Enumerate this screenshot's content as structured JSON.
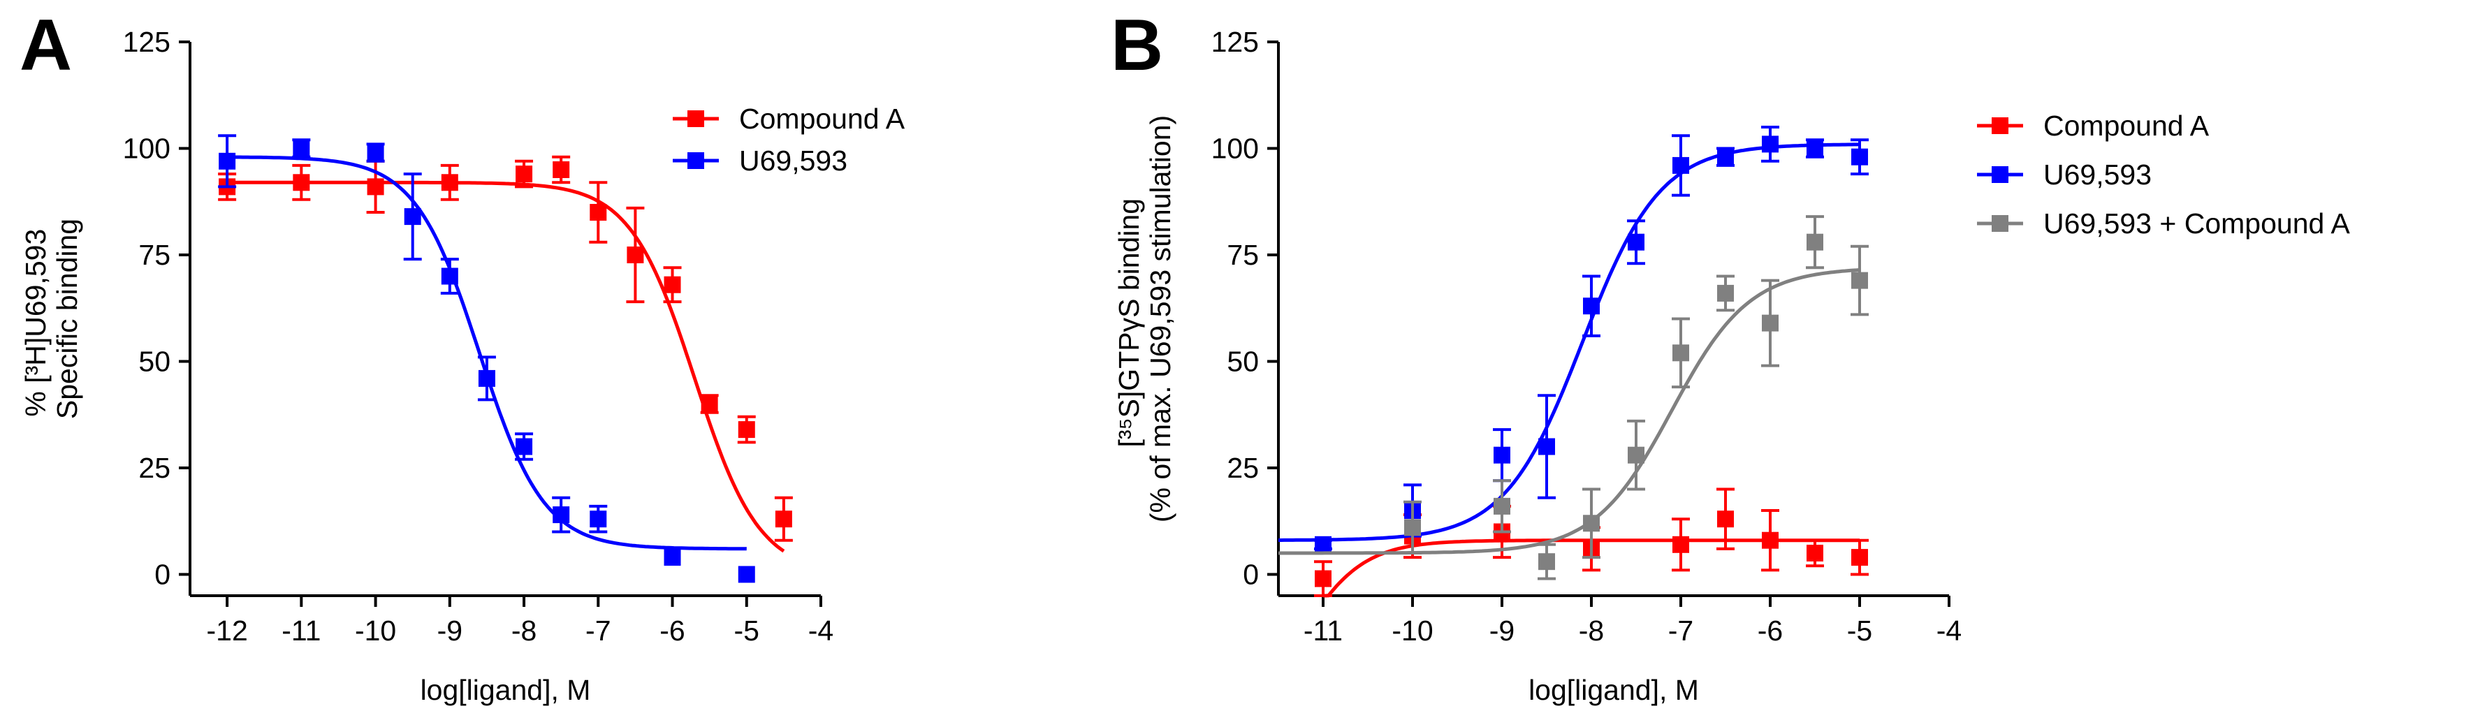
{
  "chart_data": [
    {
      "panel": "A",
      "type": "scatter",
      "xlabel": "log[ligand], M",
      "ylabel_lines": [
        "% [³H]U69,593",
        "Specific binding"
      ],
      "xlim": [
        -12.5,
        -4
      ],
      "ylim": [
        -5,
        125
      ],
      "xticks": [
        -12,
        -11,
        -10,
        -9,
        -8,
        -7,
        -6,
        -5,
        -4
      ],
      "yticks": [
        0,
        25,
        50,
        75,
        100,
        125
      ],
      "legend_position": "top-right",
      "series": [
        {
          "name": "Compound A",
          "color": "#ff0000",
          "points": [
            {
              "x": -12,
              "y": 91,
              "err": 3
            },
            {
              "x": -11,
              "y": 92,
              "err": 4
            },
            {
              "x": -10,
              "y": 91,
              "err": 6
            },
            {
              "x": -9,
              "y": 92,
              "err": 4
            },
            {
              "x": -8,
              "y": 94,
              "err": 3
            },
            {
              "x": -7.5,
              "y": 95,
              "err": 3
            },
            {
              "x": -7,
              "y": 85,
              "err": 7
            },
            {
              "x": -6.5,
              "y": 75,
              "err": 11
            },
            {
              "x": -6,
              "y": 68,
              "err": 4
            },
            {
              "x": -5.5,
              "y": 40,
              "err": 2
            },
            {
              "x": -5,
              "y": 34,
              "err": 3
            },
            {
              "x": -4.5,
              "y": 13,
              "err": 5
            }
          ],
          "fit": {
            "top": 92,
            "bottom": 0,
            "logIC50": -5.7,
            "hill": -1,
            "x_range": [
              -12,
              -4.5
            ]
          }
        },
        {
          "name": "U69,593",
          "color": "#0000ff",
          "points": [
            {
              "x": -12,
              "y": 97,
              "err": 6
            },
            {
              "x": -11,
              "y": 100,
              "err": 2
            },
            {
              "x": -10,
              "y": 99,
              "err": 2
            },
            {
              "x": -9.5,
              "y": 84,
              "err": 10
            },
            {
              "x": -9,
              "y": 70,
              "err": 4
            },
            {
              "x": -8.5,
              "y": 46,
              "err": 5
            },
            {
              "x": -8,
              "y": 30,
              "err": 3
            },
            {
              "x": -7.5,
              "y": 14,
              "err": 4
            },
            {
              "x": -7,
              "y": 13,
              "err": 3
            },
            {
              "x": -6,
              "y": 4,
              "err": 0
            },
            {
              "x": -5,
              "y": 0,
              "err": 0
            }
          ],
          "fit": {
            "top": 98,
            "bottom": 6,
            "logIC50": -8.6,
            "hill": -1,
            "x_range": [
              -12,
              -5
            ]
          }
        }
      ]
    },
    {
      "panel": "B",
      "type": "scatter",
      "xlabel": "log[ligand], M",
      "ylabel_lines": [
        "[³⁵S]GTPγS binding",
        "(% of max. U69,593 stimulation)"
      ],
      "xlim": [
        -11.5,
        -4
      ],
      "ylim": [
        -5,
        125
      ],
      "xticks": [
        -11,
        -10,
        -9,
        -8,
        -7,
        -6,
        -5,
        -4
      ],
      "yticks": [
        0,
        25,
        50,
        75,
        100,
        125
      ],
      "legend_position": "outside-right",
      "series": [
        {
          "name": "Compound A",
          "color": "#ff0000",
          "points": [
            {
              "x": -11,
              "y": -1,
              "err": 4
            },
            {
              "x": -10,
              "y": 9,
              "err": 5
            },
            {
              "x": -9,
              "y": 10,
              "err": 6
            },
            {
              "x": -8,
              "y": 6,
              "err": 5
            },
            {
              "x": -7,
              "y": 7,
              "err": 6
            },
            {
              "x": -6.5,
              "y": 13,
              "err": 7
            },
            {
              "x": -6,
              "y": 8,
              "err": 7
            },
            {
              "x": -5.5,
              "y": 5,
              "err": 3
            },
            {
              "x": -5,
              "y": 4,
              "err": 4
            }
          ],
          "fit": {
            "top": 8,
            "bottom": -40,
            "logIC50": -11.3,
            "hill": 1.2,
            "x_range": [
              -11,
              -5
            ]
          }
        },
        {
          "name": "U69,593",
          "color": "#0000ff",
          "points": [
            {
              "x": -11,
              "y": 7,
              "err": 1
            },
            {
              "x": -10,
              "y": 15,
              "err": 6
            },
            {
              "x": -9,
              "y": 28,
              "err": 6
            },
            {
              "x": -8.5,
              "y": 30,
              "err": 12
            },
            {
              "x": -8,
              "y": 63,
              "err": 7
            },
            {
              "x": -7.5,
              "y": 78,
              "err": 5
            },
            {
              "x": -7,
              "y": 96,
              "err": 7
            },
            {
              "x": -6.5,
              "y": 98,
              "err": 2
            },
            {
              "x": -6,
              "y": 101,
              "err": 4
            },
            {
              "x": -5.5,
              "y": 100,
              "err": 2
            },
            {
              "x": -5,
              "y": 98,
              "err": 4
            }
          ],
          "fit": {
            "top": 101,
            "bottom": 8,
            "logIC50": -8.1,
            "hill": 1,
            "x_range": [
              -11.5,
              -5
            ]
          }
        },
        {
          "name": "U69,593 + Compound A",
          "color": "#808080",
          "points": [
            {
              "x": -10,
              "y": 11,
              "err": 6
            },
            {
              "x": -9,
              "y": 16,
              "err": 6
            },
            {
              "x": -8.5,
              "y": 3,
              "err": 4
            },
            {
              "x": -8,
              "y": 12,
              "err": 8
            },
            {
              "x": -7.5,
              "y": 28,
              "err": 8
            },
            {
              "x": -7,
              "y": 52,
              "err": 8
            },
            {
              "x": -6.5,
              "y": 66,
              "err": 4
            },
            {
              "x": -6,
              "y": 59,
              "err": 10
            },
            {
              "x": -5.5,
              "y": 78,
              "err": 6
            },
            {
              "x": -5,
              "y": 69,
              "err": 8
            }
          ],
          "fit": {
            "top": 72,
            "bottom": 5,
            "logIC50": -7.1,
            "hill": 1,
            "x_range": [
              -11.5,
              -5
            ]
          }
        }
      ]
    }
  ]
}
